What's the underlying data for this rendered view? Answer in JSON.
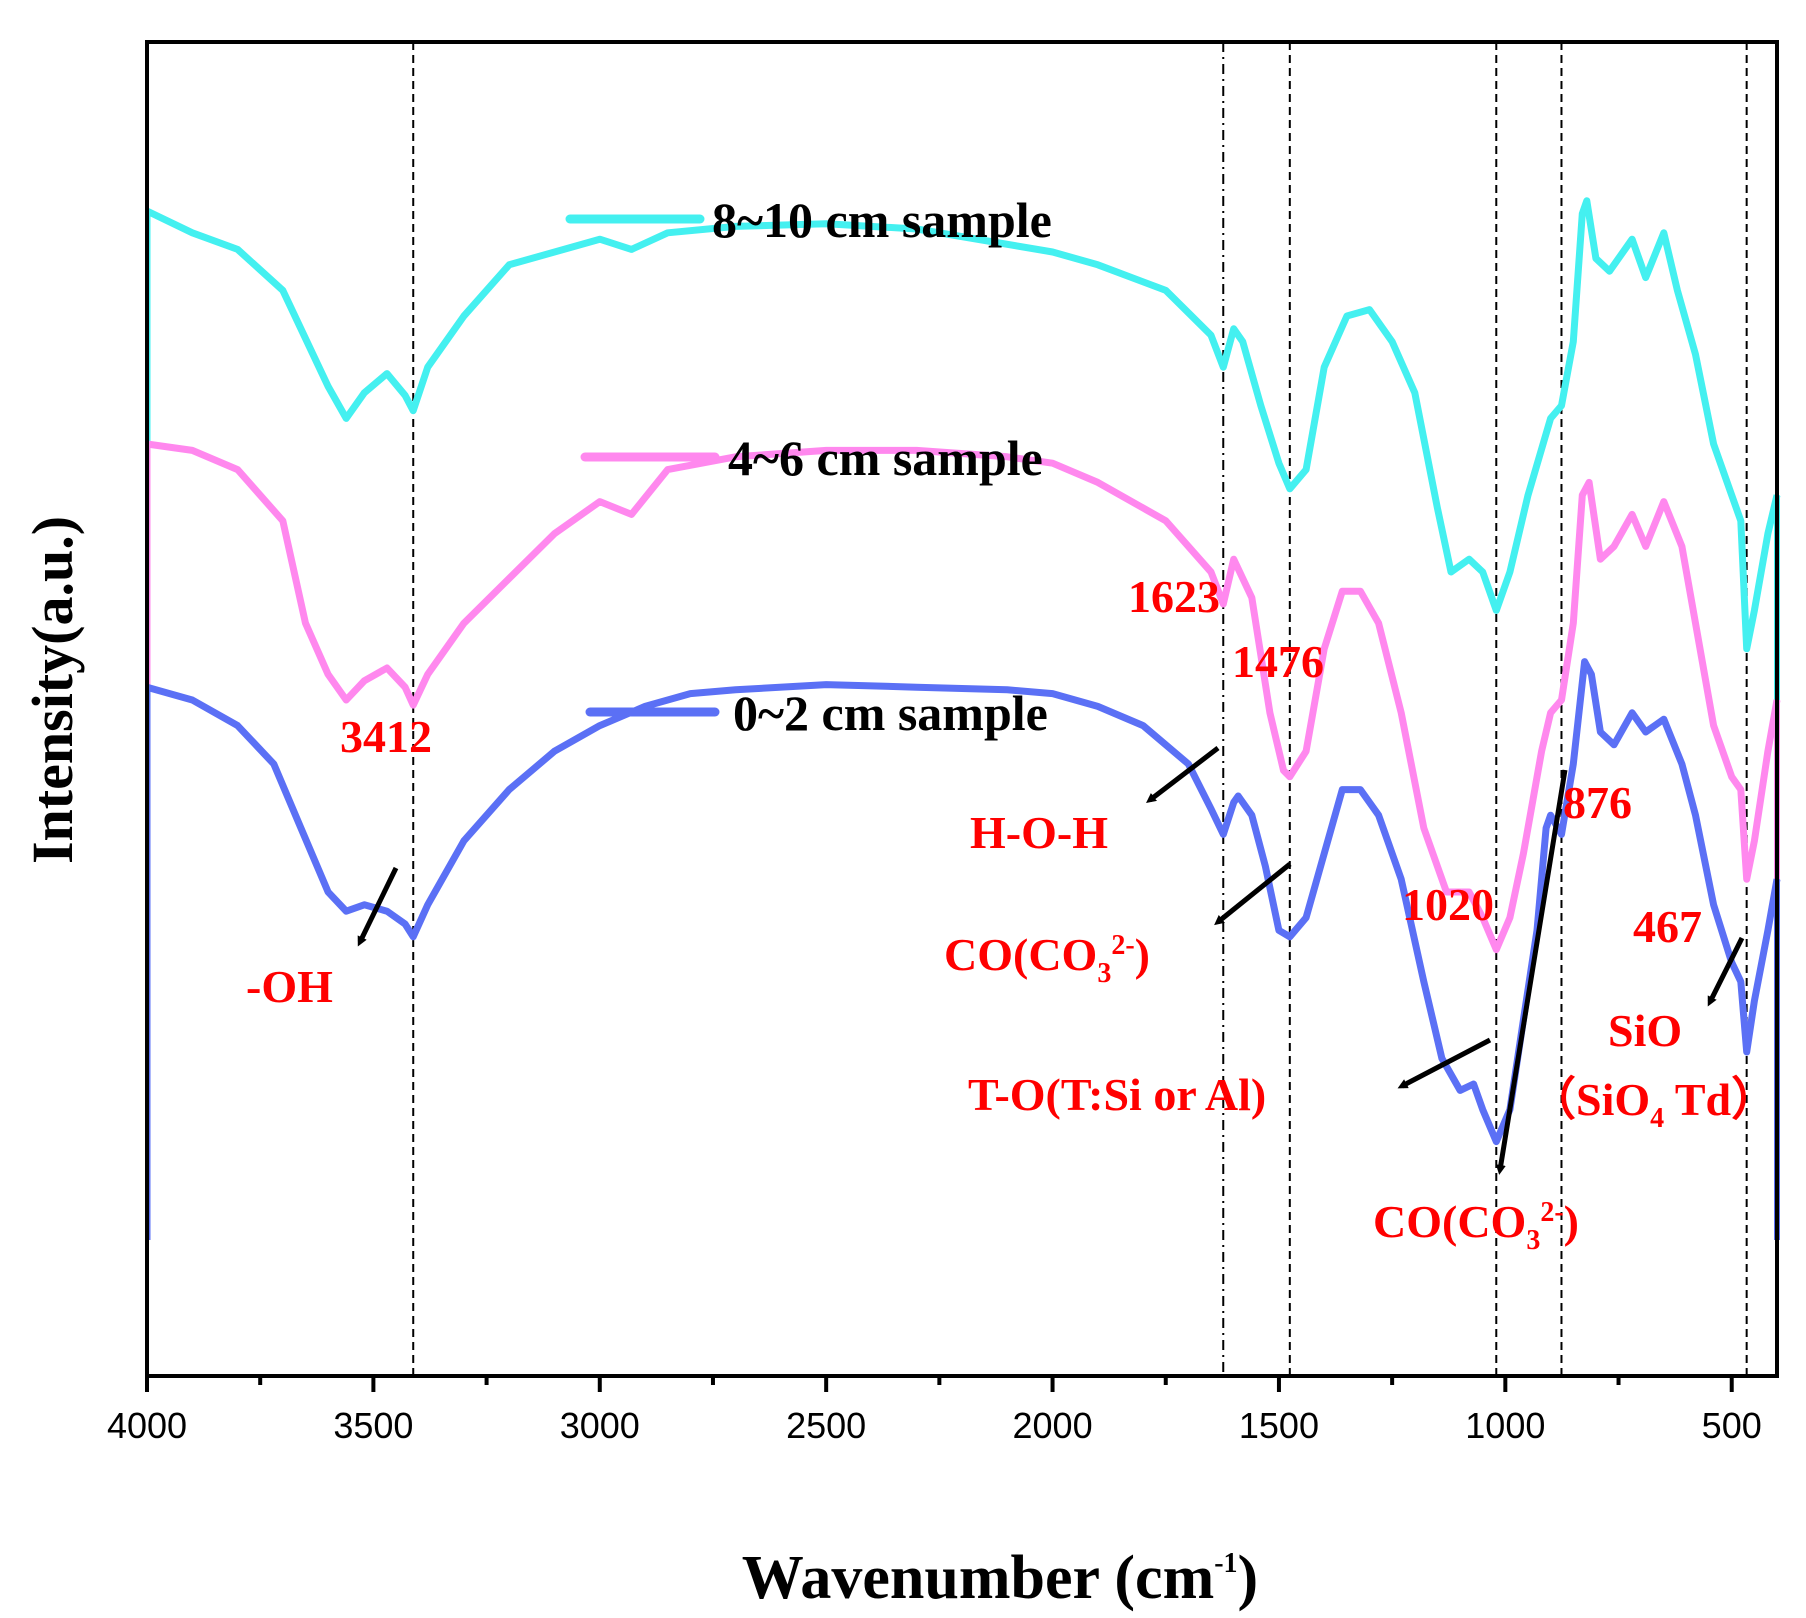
{
  "chart_data": {
    "type": "line",
    "title": "",
    "xlabel": "Wavenumber (cm",
    "xlabel_sup": "-1",
    "xlabel_end": ")",
    "ylabel": "Intensity(a.u.)",
    "xlim": [
      4000,
      400
    ],
    "x_ticks": [
      "4000",
      "3500",
      "3000",
      "2500",
      "2000",
      "1500",
      "1000",
      "500"
    ],
    "grid": false,
    "legend_position": "center-top",
    "series": [
      {
        "name": "8~10 cm sample",
        "color": "#44f0f0",
        "points": [
          [
            4000,
            88.2
          ],
          [
            3900,
            86.5
          ],
          [
            3800,
            85.2
          ],
          [
            3700,
            82.0
          ],
          [
            3600,
            74.5
          ],
          [
            3560,
            72.0
          ],
          [
            3520,
            74.0
          ],
          [
            3470,
            75.5
          ],
          [
            3430,
            73.8
          ],
          [
            3412,
            72.6
          ],
          [
            3380,
            76.0
          ],
          [
            3300,
            80.0
          ],
          [
            3200,
            84.0
          ],
          [
            3000,
            86.0
          ],
          [
            2930,
            85.2
          ],
          [
            2850,
            86.5
          ],
          [
            2700,
            87.0
          ],
          [
            2500,
            87.2
          ],
          [
            2300,
            86.8
          ],
          [
            2000,
            85.0
          ],
          [
            1900,
            84.0
          ],
          [
            1750,
            82.0
          ],
          [
            1650,
            78.5
          ],
          [
            1623,
            76.0
          ],
          [
            1600,
            79.0
          ],
          [
            1580,
            78.0
          ],
          [
            1540,
            73.0
          ],
          [
            1500,
            68.5
          ],
          [
            1476,
            66.5
          ],
          [
            1440,
            68.0
          ],
          [
            1400,
            76.0
          ],
          [
            1350,
            80.0
          ],
          [
            1300,
            80.5
          ],
          [
            1250,
            78.0
          ],
          [
            1200,
            74.0
          ],
          [
            1150,
            65.0
          ],
          [
            1120,
            60.0
          ],
          [
            1080,
            61.0
          ],
          [
            1050,
            60.0
          ],
          [
            1020,
            57.0
          ],
          [
            990,
            60.0
          ],
          [
            950,
            66.0
          ],
          [
            900,
            72.0
          ],
          [
            876,
            73.0
          ],
          [
            850,
            78.0
          ],
          [
            830,
            88.0
          ],
          [
            820,
            89.0
          ],
          [
            800,
            84.5
          ],
          [
            770,
            83.5
          ],
          [
            720,
            86.0
          ],
          [
            690,
            83.0
          ],
          [
            650,
            86.5
          ],
          [
            620,
            82.0
          ],
          [
            580,
            77.0
          ],
          [
            540,
            70.0
          ],
          [
            500,
            66.0
          ],
          [
            480,
            64.0
          ],
          [
            467,
            54.0
          ],
          [
            450,
            57.0
          ],
          [
            420,
            63.0
          ],
          [
            400,
            66.0
          ]
        ]
      },
      {
        "name": "4~6 cm sample",
        "color": "#ff88ee",
        "points": [
          [
            4000,
            70.0
          ],
          [
            3900,
            69.5
          ],
          [
            3800,
            68.0
          ],
          [
            3700,
            64.0
          ],
          [
            3650,
            56.0
          ],
          [
            3600,
            52.0
          ],
          [
            3560,
            50.0
          ],
          [
            3520,
            51.5
          ],
          [
            3470,
            52.5
          ],
          [
            3430,
            51.0
          ],
          [
            3412,
            49.6
          ],
          [
            3380,
            52.0
          ],
          [
            3300,
            56.0
          ],
          [
            3100,
            63.0
          ],
          [
            3000,
            65.5
          ],
          [
            2930,
            64.5
          ],
          [
            2850,
            68.0
          ],
          [
            2700,
            69.0
          ],
          [
            2500,
            69.5
          ],
          [
            2300,
            69.5
          ],
          [
            2100,
            69.0
          ],
          [
            2000,
            68.5
          ],
          [
            1900,
            67.0
          ],
          [
            1750,
            64.0
          ],
          [
            1650,
            60.0
          ],
          [
            1623,
            57.5
          ],
          [
            1600,
            61.0
          ],
          [
            1560,
            58.0
          ],
          [
            1520,
            49.0
          ],
          [
            1490,
            44.5
          ],
          [
            1476,
            44.0
          ],
          [
            1440,
            46.0
          ],
          [
            1400,
            54.0
          ],
          [
            1360,
            58.5
          ],
          [
            1320,
            58.5
          ],
          [
            1280,
            56.0
          ],
          [
            1230,
            49.0
          ],
          [
            1180,
            40.0
          ],
          [
            1130,
            35.0
          ],
          [
            1080,
            35.0
          ],
          [
            1050,
            33.0
          ],
          [
            1020,
            30.5
          ],
          [
            990,
            33.0
          ],
          [
            960,
            38.0
          ],
          [
            920,
            46.0
          ],
          [
            900,
            49.0
          ],
          [
            876,
            50.0
          ],
          [
            850,
            56.0
          ],
          [
            830,
            66.0
          ],
          [
            815,
            67.0
          ],
          [
            790,
            61.0
          ],
          [
            760,
            62.0
          ],
          [
            720,
            64.5
          ],
          [
            690,
            62.0
          ],
          [
            650,
            65.5
          ],
          [
            610,
            62.0
          ],
          [
            580,
            56.0
          ],
          [
            540,
            48.0
          ],
          [
            500,
            44.0
          ],
          [
            480,
            43.0
          ],
          [
            467,
            36.0
          ],
          [
            450,
            39.0
          ],
          [
            420,
            46.0
          ],
          [
            400,
            50.0
          ]
        ]
      },
      {
        "name": "0~2 cm sample",
        "color": "#5b70f5",
        "points": [
          [
            4000,
            51.0
          ],
          [
            3900,
            50.0
          ],
          [
            3800,
            48.0
          ],
          [
            3720,
            45.0
          ],
          [
            3660,
            40.0
          ],
          [
            3600,
            35.0
          ],
          [
            3560,
            33.5
          ],
          [
            3520,
            34.0
          ],
          [
            3470,
            33.5
          ],
          [
            3430,
            32.5
          ],
          [
            3412,
            31.5
          ],
          [
            3380,
            34.0
          ],
          [
            3300,
            39.0
          ],
          [
            3200,
            43.0
          ],
          [
            3100,
            46.0
          ],
          [
            3000,
            48.0
          ],
          [
            2900,
            49.5
          ],
          [
            2800,
            50.5
          ],
          [
            2700,
            50.8
          ],
          [
            2500,
            51.2
          ],
          [
            2300,
            51.0
          ],
          [
            2100,
            50.8
          ],
          [
            2000,
            50.5
          ],
          [
            1900,
            49.5
          ],
          [
            1800,
            48.0
          ],
          [
            1700,
            45.0
          ],
          [
            1650,
            41.5
          ],
          [
            1623,
            39.5
          ],
          [
            1600,
            42.0
          ],
          [
            1590,
            42.5
          ],
          [
            1560,
            41.0
          ],
          [
            1530,
            37.0
          ],
          [
            1500,
            32.0
          ],
          [
            1476,
            31.5
          ],
          [
            1440,
            33.0
          ],
          [
            1400,
            38.0
          ],
          [
            1360,
            43.0
          ],
          [
            1320,
            43.0
          ],
          [
            1280,
            41.0
          ],
          [
            1230,
            36.0
          ],
          [
            1180,
            28.0
          ],
          [
            1140,
            22.0
          ],
          [
            1100,
            19.5
          ],
          [
            1070,
            20.0
          ],
          [
            1050,
            18.0
          ],
          [
            1020,
            15.5
          ],
          [
            990,
            18.0
          ],
          [
            960,
            25.0
          ],
          [
            930,
            32.0
          ],
          [
            910,
            40.0
          ],
          [
            900,
            41.0
          ],
          [
            876,
            39.5
          ],
          [
            850,
            45.0
          ],
          [
            825,
            53.0
          ],
          [
            810,
            52.0
          ],
          [
            790,
            47.5
          ],
          [
            760,
            46.5
          ],
          [
            720,
            49.0
          ],
          [
            690,
            47.5
          ],
          [
            650,
            48.5
          ],
          [
            610,
            45.0
          ],
          [
            580,
            41.0
          ],
          [
            540,
            34.0
          ],
          [
            500,
            29.5
          ],
          [
            480,
            28.0
          ],
          [
            467,
            22.5
          ],
          [
            450,
            26.5
          ],
          [
            420,
            32.0
          ],
          [
            400,
            36.0
          ]
        ]
      }
    ],
    "peak_lines": [
      {
        "x": 3412,
        "style": "dashed"
      },
      {
        "x": 1623,
        "style": "dashdot"
      },
      {
        "x": 1476,
        "style": "dashed"
      },
      {
        "x": 1020,
        "style": "dashed"
      },
      {
        "x": 876,
        "style": "dashed"
      },
      {
        "x": 467,
        "style": "dashed"
      }
    ],
    "annotations": {
      "peak_3412": "3412",
      "peak_1623": "1623",
      "peak_1476": "1476",
      "peak_1020": "1020",
      "peak_876": "876",
      "peak_467": "467",
      "label_oh": "-OH",
      "label_hoh": "H-O-H",
      "label_co1": "CO(CO",
      "label_co2": "CO(CO",
      "co_sub": "3",
      "co_sup": "2-",
      "co_end": ")",
      "label_to": "T-O(T:Si or Al)",
      "label_sio": "SiO",
      "label_sio4_open": "（SiO",
      "label_sio4_sub": "4",
      "label_sio4_end": " Td）"
    },
    "annotation_color": "#ff0000"
  }
}
